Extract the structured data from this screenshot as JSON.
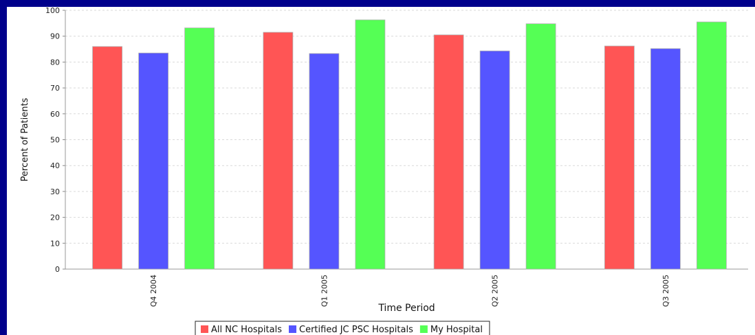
{
  "chart_data": {
    "type": "bar",
    "xlabel": "Time Period",
    "ylabel": "Percent of Patients",
    "ylim": [
      0,
      100
    ],
    "yticks": [
      0,
      10,
      20,
      30,
      40,
      50,
      60,
      70,
      80,
      90,
      100
    ],
    "grid": true,
    "legend_position": "bottom",
    "categories": [
      "Q4 2004",
      "Q1 2005",
      "Q2 2005",
      "Q3 2005"
    ],
    "series": [
      {
        "name": "All NC Hospitals",
        "color": "#ff5555",
        "values": [
          86,
          91.5,
          90.5,
          86.2
        ]
      },
      {
        "name": "Certified JC PSC Hospitals",
        "color": "#5555ff",
        "values": [
          83.5,
          83.3,
          84.3,
          85.2
        ]
      },
      {
        "name": "My Hospital",
        "color": "#55ff55",
        "values": [
          93.2,
          96.3,
          94.8,
          95.5
        ]
      }
    ]
  },
  "colors": {
    "page_background": "#00008b",
    "plot_background": "#ffffff",
    "gridline": "#d9d9d9"
  }
}
